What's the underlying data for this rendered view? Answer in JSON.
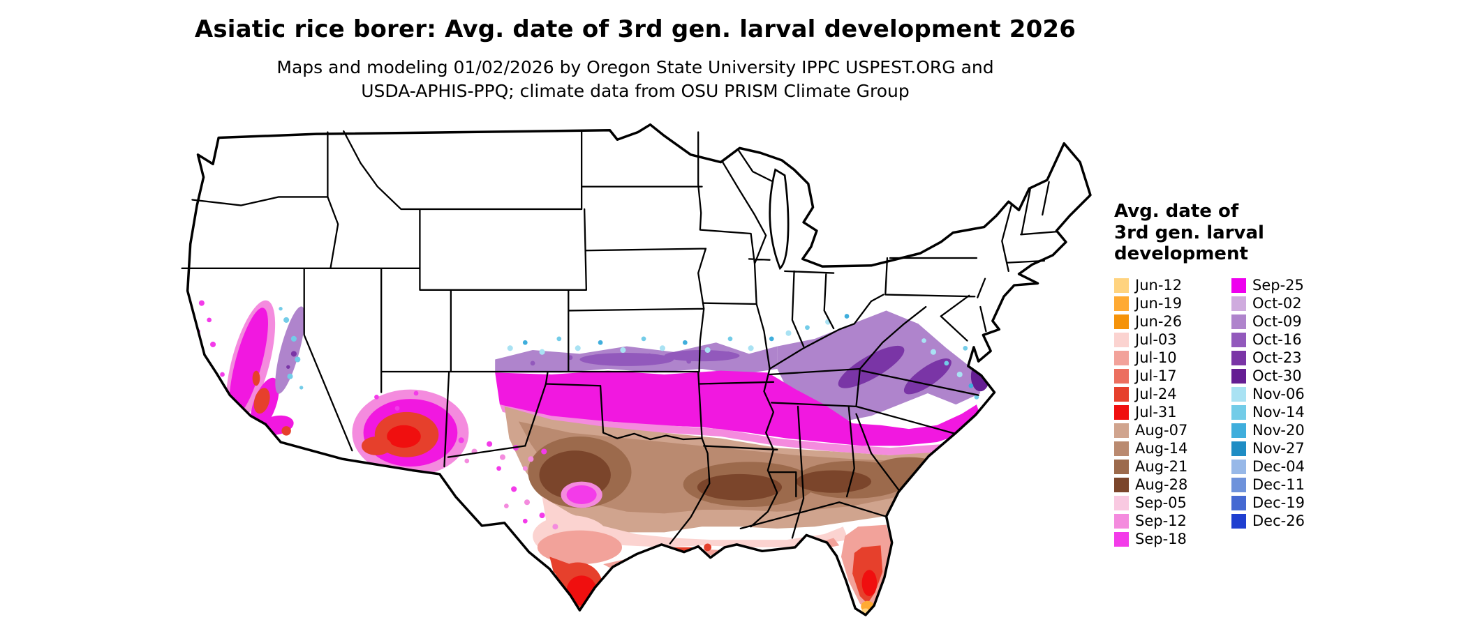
{
  "title": "Asiatic rice borer: Avg. date of 3rd gen. larval development 2026",
  "subtitle_line1": "Maps and modeling 01/02/2026 by Oregon State University IPPC USPEST.ORG and",
  "subtitle_line2": "USDA-APHIS-PPQ; climate data from OSU PRISM Climate Group",
  "map": {
    "name": "us-choropleth-map",
    "region": "Contiguous United States",
    "variable": "Average date of 3rd generation larval development"
  },
  "legend": {
    "title_lines": [
      "Avg. date of",
      "3rd gen. larval",
      "development"
    ],
    "column1": [
      {
        "label": "Jun-12",
        "color": "#FFD37F"
      },
      {
        "label": "Jun-19",
        "color": "#FFAA33"
      },
      {
        "label": "Jun-26",
        "color": "#F5930A"
      },
      {
        "label": "Jul-03",
        "color": "#FBD3D0"
      },
      {
        "label": "Jul-10",
        "color": "#F2A29A"
      },
      {
        "label": "Jul-17",
        "color": "#EC6F5F"
      },
      {
        "label": "Jul-24",
        "color": "#E6402C"
      },
      {
        "label": "Jul-31",
        "color": "#F00F0F"
      },
      {
        "label": "Aug-07",
        "color": "#D0A48E"
      },
      {
        "label": "Aug-14",
        "color": "#BA8A70"
      },
      {
        "label": "Aug-21",
        "color": "#9C6A4C"
      },
      {
        "label": "Aug-28",
        "color": "#7B452B"
      },
      {
        "label": "Sep-05",
        "color": "#F9C9E1"
      },
      {
        "label": "Sep-12",
        "color": "#F48BDE"
      },
      {
        "label": "Sep-18",
        "color": "#F33BE9"
      }
    ],
    "column2": [
      {
        "label": "Sep-25",
        "color": "#EE00EE"
      },
      {
        "label": "Oct-02",
        "color": "#CFABDE"
      },
      {
        "label": "Oct-09",
        "color": "#AF84CC"
      },
      {
        "label": "Oct-16",
        "color": "#9259BC"
      },
      {
        "label": "Oct-23",
        "color": "#7A35A6"
      },
      {
        "label": "Oct-30",
        "color": "#651E93"
      },
      {
        "label": "Nov-06",
        "color": "#A9E2F3"
      },
      {
        "label": "Nov-14",
        "color": "#73CCE8"
      },
      {
        "label": "Nov-20",
        "color": "#3FAEDC"
      },
      {
        "label": "Nov-27",
        "color": "#1F8DC4"
      },
      {
        "label": "Dec-04",
        "color": "#97B8E8"
      },
      {
        "label": "Dec-11",
        "color": "#6E92DB"
      },
      {
        "label": "Dec-19",
        "color": "#4569D2"
      },
      {
        "label": "Dec-26",
        "color": "#1F3FD0"
      }
    ]
  }
}
